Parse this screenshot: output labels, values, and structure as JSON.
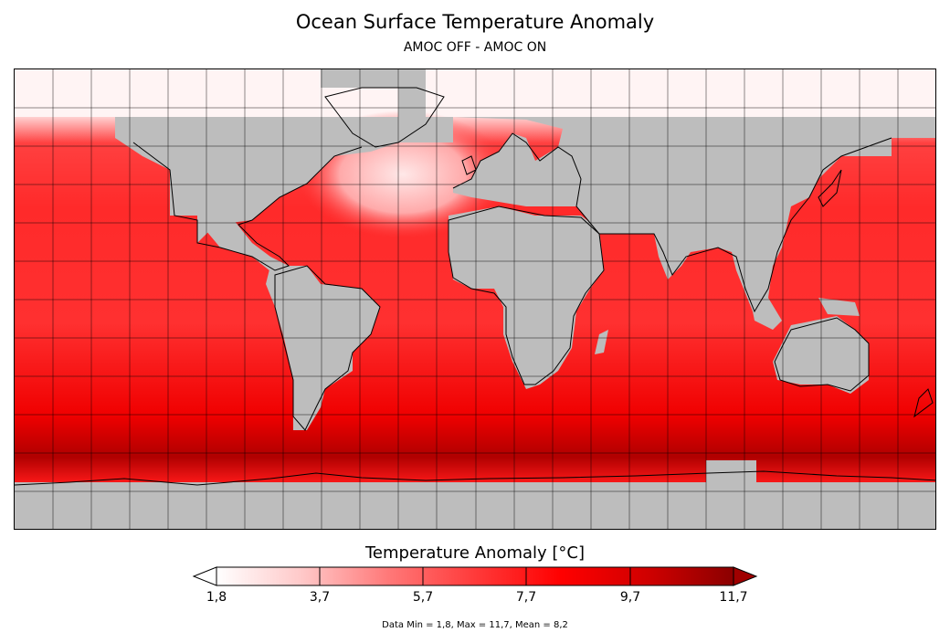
{
  "title": "Ocean Surface Temperature Anomaly",
  "subtitle": "AMOC OFF - AMOC ON",
  "colorbar": {
    "label": "Temperature Anomaly [°C]",
    "ticks": [
      "1,8",
      "3,7",
      "5,7",
      "7,7",
      "9,7",
      "11,7"
    ],
    "min": 1.8,
    "max": 11.7,
    "colors": [
      "#ffffff",
      "#ffc8c8",
      "#ff7878",
      "#ff3a3a",
      "#ff0000",
      "#d00000",
      "#8b0000"
    ],
    "land_color": "#bdbdbd"
  },
  "stats": "Data Min = 1,8, Max = 11,7, Mean = 8,2"
}
